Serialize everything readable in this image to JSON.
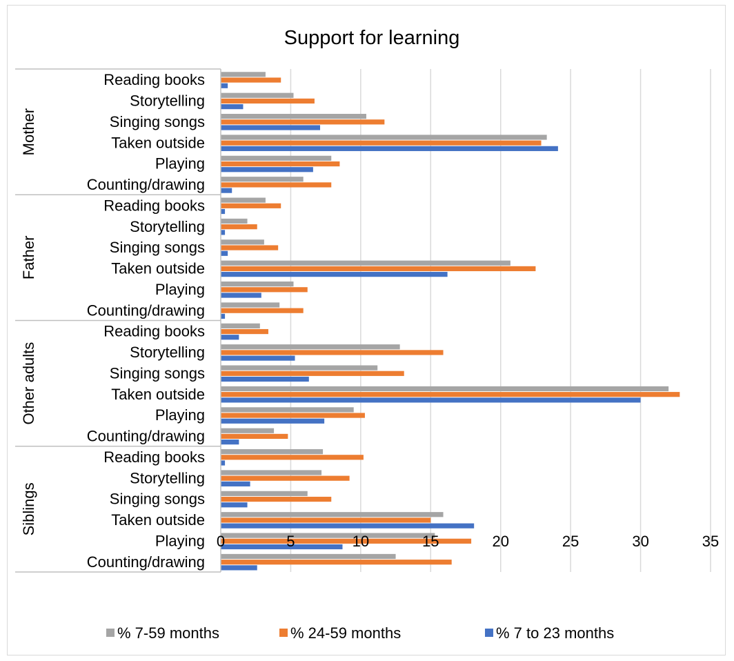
{
  "chart_data": {
    "type": "bar",
    "orientation": "horizontal",
    "title": "Support for learning",
    "xlabel": "",
    "ylabel": "",
    "xlim": [
      0,
      35
    ],
    "x_ticks": [
      "0",
      "5",
      "10",
      "15",
      "20",
      "25",
      "30",
      "35"
    ],
    "grid": true,
    "legend_position": "bottom",
    "groups": [
      "Mother",
      "Father",
      "Other adults",
      "Siblings"
    ],
    "categories": [
      "Reading books",
      "Storytelling",
      "Singing songs",
      "Taken outside",
      "Playing",
      "Counting/drawing"
    ],
    "series": [
      {
        "name": "% 7-59 months",
        "color": "#a5a5a5",
        "values": [
          [
            3.2,
            5.2,
            10.4,
            23.3,
            7.9,
            5.9
          ],
          [
            3.2,
            1.9,
            3.1,
            20.7,
            5.2,
            4.2
          ],
          [
            2.8,
            12.8,
            11.2,
            32.0,
            9.5,
            3.8
          ],
          [
            7.3,
            7.2,
            6.2,
            15.9,
            15.3,
            12.5
          ]
        ]
      },
      {
        "name": "% 24-59 months",
        "color": "#ed7d31",
        "values": [
          [
            4.3,
            6.7,
            11.7,
            22.9,
            8.5,
            7.9
          ],
          [
            4.3,
            2.6,
            4.1,
            22.5,
            6.2,
            5.9
          ],
          [
            3.4,
            15.9,
            13.1,
            32.8,
            10.3,
            4.8
          ],
          [
            10.2,
            9.2,
            7.9,
            15.0,
            17.9,
            16.5
          ]
        ]
      },
      {
        "name": "% 7 to 23 months",
        "color": "#4472c4",
        "values": [
          [
            0.5,
            1.6,
            7.1,
            24.1,
            6.6,
            0.8
          ],
          [
            0.3,
            0.3,
            0.5,
            16.2,
            2.9,
            0.3
          ],
          [
            1.3,
            5.3,
            6.3,
            30.0,
            7.4,
            1.3
          ],
          [
            0.3,
            2.1,
            1.9,
            18.1,
            8.7,
            2.6
          ]
        ]
      }
    ]
  }
}
